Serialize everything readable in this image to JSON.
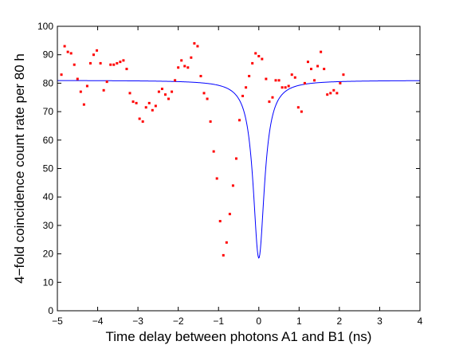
{
  "chart_data": {
    "type": "scatter",
    "title": "",
    "xlabel": "Time delay between photons A1 and B1 (ns)",
    "ylabel": "4−fold coincidence count rate  per 80 h",
    "xlim": [
      -5,
      4
    ],
    "ylim": [
      0,
      100
    ],
    "xticks": [
      -5,
      -4,
      -3,
      -2,
      -1,
      0,
      1,
      2,
      3,
      4
    ],
    "xtick_labels": [
      "−5",
      "−4",
      "−3",
      "−2",
      "−1",
      "0",
      "1",
      "2",
      "3",
      "4"
    ],
    "yticks": [
      0,
      10,
      20,
      30,
      40,
      50,
      60,
      70,
      80,
      90,
      100
    ],
    "ytick_labels": [
      "0",
      "10",
      "20",
      "30",
      "40",
      "50",
      "60",
      "70",
      "80",
      "90",
      "100"
    ],
    "grid": false,
    "legend": "none",
    "series": [
      {
        "kind": "scatter",
        "color": "#ff0000",
        "points": [
          [
            -4.9,
            83
          ],
          [
            -4.82,
            93
          ],
          [
            -4.74,
            91
          ],
          [
            -4.66,
            90.5
          ],
          [
            -4.58,
            86.5
          ],
          [
            -4.5,
            81.5
          ],
          [
            -4.42,
            77
          ],
          [
            -4.34,
            72.5
          ],
          [
            -4.26,
            79
          ],
          [
            -4.18,
            87
          ],
          [
            -4.1,
            90
          ],
          [
            -4.02,
            91.5
          ],
          [
            -3.93,
            87
          ],
          [
            -3.85,
            77.5
          ],
          [
            -3.77,
            80.5
          ],
          [
            -3.68,
            86.5
          ],
          [
            -3.6,
            86.5
          ],
          [
            -3.52,
            87
          ],
          [
            -3.44,
            87.5
          ],
          [
            -3.36,
            88
          ],
          [
            -3.28,
            85
          ],
          [
            -3.2,
            76.5
          ],
          [
            -3.12,
            73.5
          ],
          [
            -3.04,
            73
          ],
          [
            -2.96,
            67.5
          ],
          [
            -2.88,
            66.5
          ],
          [
            -2.8,
            71.5
          ],
          [
            -2.72,
            73
          ],
          [
            -2.64,
            70.5
          ],
          [
            -2.56,
            72
          ],
          [
            -2.48,
            77
          ],
          [
            -2.4,
            78
          ],
          [
            -2.32,
            76
          ],
          [
            -2.24,
            74.5
          ],
          [
            -2.16,
            77
          ],
          [
            -2.08,
            81
          ],
          [
            -2.0,
            85.5
          ],
          [
            -1.92,
            88
          ],
          [
            -1.84,
            86
          ],
          [
            -1.76,
            85.5
          ],
          [
            -1.68,
            89
          ],
          [
            -1.6,
            94
          ],
          [
            -1.52,
            93
          ],
          [
            -1.44,
            82.5
          ],
          [
            -1.36,
            76.5
          ],
          [
            -1.28,
            74.5
          ],
          [
            -1.2,
            66.5
          ],
          [
            -1.12,
            56
          ],
          [
            -1.04,
            46.5
          ],
          [
            -0.96,
            31.5
          ],
          [
            -0.88,
            19.5
          ],
          [
            -0.8,
            24
          ],
          [
            -0.72,
            34
          ],
          [
            -0.64,
            44
          ],
          [
            -0.56,
            53.5
          ],
          [
            -0.48,
            67
          ],
          [
            -0.4,
            75.5
          ],
          [
            -0.32,
            78.5
          ],
          [
            -0.24,
            82.5
          ],
          [
            -0.16,
            87
          ],
          [
            -0.08,
            90.5
          ],
          [
            0.0,
            89.5
          ],
          [
            0.08,
            88.5
          ],
          [
            0.18,
            81.5
          ],
          [
            0.26,
            73.5
          ],
          [
            0.34,
            75
          ],
          [
            0.42,
            81
          ],
          [
            0.5,
            81
          ],
          [
            0.58,
            78.5
          ],
          [
            0.66,
            78.5
          ],
          [
            0.74,
            79
          ],
          [
            0.82,
            83
          ],
          [
            0.9,
            82
          ],
          [
            0.98,
            71.5
          ],
          [
            1.06,
            70
          ],
          [
            1.14,
            80
          ],
          [
            1.22,
            87.5
          ],
          [
            1.3,
            85
          ],
          [
            1.38,
            81
          ],
          [
            1.46,
            86
          ],
          [
            1.54,
            91
          ],
          [
            1.62,
            85
          ],
          [
            1.7,
            76
          ],
          [
            1.78,
            76.5
          ],
          [
            1.86,
            77.5
          ],
          [
            1.94,
            76.5
          ],
          [
            2.02,
            80
          ],
          [
            2.1,
            83
          ]
        ]
      },
      {
        "kind": "line",
        "color": "#0000ff",
        "model": "lorentzian-dip",
        "baseline": 81,
        "center": 0.0,
        "depth": 62.5,
        "hwhm": 0.17
      }
    ]
  }
}
